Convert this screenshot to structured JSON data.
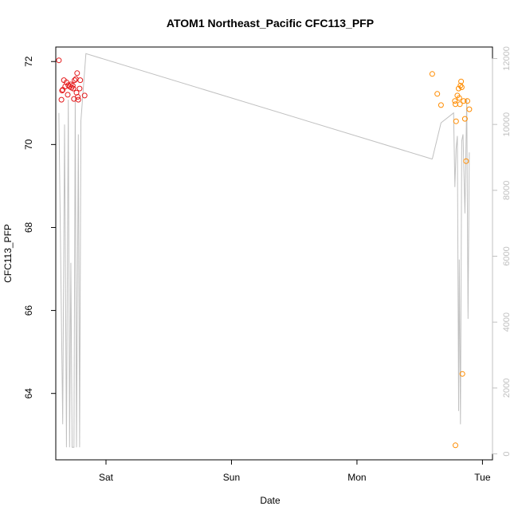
{
  "chart_data": {
    "type": "scatter",
    "title": "ATOM1 Northeast_Pacific CFC113_PFP",
    "xlabel": "Date",
    "ylabel": "CFC113_PFP",
    "x_ticks": [
      {
        "label": "Sat",
        "x": 0.0
      },
      {
        "label": "Sun",
        "x": 1.0
      },
      {
        "label": "Mon",
        "x": 2.0
      },
      {
        "label": "Tue",
        "x": 3.0
      }
    ],
    "xlim": [
      -0.4,
      3.08
    ],
    "y_ticks": [
      64,
      66,
      68,
      70,
      72
    ],
    "ylim": [
      62.4,
      72.35
    ],
    "y2_ticks": [
      0,
      2000,
      4000,
      6000,
      8000,
      10000,
      12000
    ],
    "y2lim": [
      -180,
      12350
    ],
    "colors": {
      "series_1": "#e41a1c",
      "series_2": "#ff8c00",
      "line": "#c0c0c0"
    },
    "series": [
      {
        "color": "#e41a1c",
        "points": [
          [
            -0.375,
            72.03
          ],
          [
            -0.355,
            71.08
          ],
          [
            -0.35,
            71.3
          ],
          [
            -0.345,
            71.32
          ],
          [
            -0.335,
            71.55
          ],
          [
            -0.325,
            71.4
          ],
          [
            -0.315,
            71.5
          ],
          [
            -0.305,
            71.2
          ],
          [
            -0.3,
            71.43
          ],
          [
            -0.29,
            71.4
          ],
          [
            -0.28,
            71.45
          ],
          [
            -0.275,
            71.37
          ],
          [
            -0.265,
            71.42
          ],
          [
            -0.26,
            71.35
          ],
          [
            -0.255,
            71.1
          ],
          [
            -0.25,
            71.55
          ],
          [
            -0.24,
            71.58
          ],
          [
            -0.235,
            71.25
          ],
          [
            -0.23,
            71.72
          ],
          [
            -0.225,
            71.15
          ],
          [
            -0.22,
            71.08
          ],
          [
            -0.21,
            71.35
          ],
          [
            -0.205,
            71.55
          ],
          [
            -0.17,
            71.18
          ]
        ]
      },
      {
        "color": "#ff8c00",
        "points": [
          [
            2.6,
            71.7
          ],
          [
            2.64,
            71.22
          ],
          [
            2.67,
            70.95
          ],
          [
            2.78,
            71.05
          ],
          [
            2.785,
            70.97
          ],
          [
            2.79,
            70.56
          ],
          [
            2.8,
            71.18
          ],
          [
            2.81,
            71.35
          ],
          [
            2.815,
            71.12
          ],
          [
            2.82,
            70.97
          ],
          [
            2.825,
            71.42
          ],
          [
            2.83,
            71.52
          ],
          [
            2.835,
            71.38
          ],
          [
            2.84,
            64.47
          ],
          [
            2.85,
            71.05
          ],
          [
            2.86,
            70.62
          ],
          [
            2.87,
            69.6
          ],
          [
            2.88,
            71.05
          ],
          [
            2.895,
            70.85
          ],
          [
            2.785,
            62.75
          ]
        ]
      }
    ],
    "secondary_line": {
      "color": "#c0c0c0",
      "points": [
        [
          -0.375,
          10350
        ],
        [
          -0.345,
          900
        ],
        [
          -0.33,
          10000
        ],
        [
          -0.315,
          200
        ],
        [
          -0.3,
          10750
        ],
        [
          -0.29,
          200
        ],
        [
          -0.28,
          5800
        ],
        [
          -0.27,
          200
        ],
        [
          -0.255,
          200
        ],
        [
          -0.245,
          10800
        ],
        [
          -0.235,
          200
        ],
        [
          -0.22,
          9700
        ],
        [
          -0.21,
          200
        ],
        [
          -0.2,
          10100
        ],
        [
          -0.16,
          12150
        ],
        [
          2.6,
          8950
        ],
        [
          2.67,
          10050
        ],
        [
          2.77,
          10350
        ],
        [
          2.78,
          8100
        ],
        [
          2.79,
          9250
        ],
        [
          2.8,
          9650
        ],
        [
          2.81,
          1300
        ],
        [
          2.815,
          5900
        ],
        [
          2.825,
          900
        ],
        [
          2.835,
          9500
        ],
        [
          2.845,
          9700
        ],
        [
          2.86,
          7300
        ],
        [
          2.875,
          10800
        ],
        [
          2.885,
          4100
        ],
        [
          2.895,
          9150
        ]
      ]
    }
  }
}
